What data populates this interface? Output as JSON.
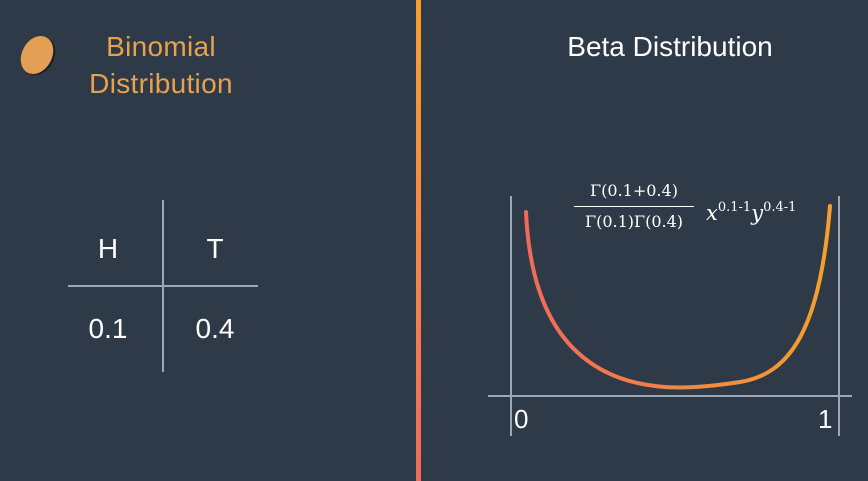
{
  "left": {
    "title_line1": "Binomial",
    "title_line2": "Distribution",
    "table": {
      "headers": [
        "H",
        "T"
      ],
      "values": [
        "0.1",
        "0.4"
      ]
    }
  },
  "right": {
    "title": "Beta Distribution",
    "formula": {
      "numerator": "Γ(0.1+0.4)",
      "denominator": "Γ(0.1)Γ(0.4)",
      "base_x": "x",
      "exp_x": "0.1-1",
      "base_y": "y",
      "exp_y": "0.4-1"
    },
    "axis": {
      "min_label": "0",
      "max_label": "1"
    }
  },
  "colors": {
    "background": "#2e3a47",
    "accent_orange": "#e8a24d",
    "curve_start": "#ef6a5c",
    "curve_end": "#f5a02e"
  },
  "icons": [
    "coin-icon"
  ]
}
